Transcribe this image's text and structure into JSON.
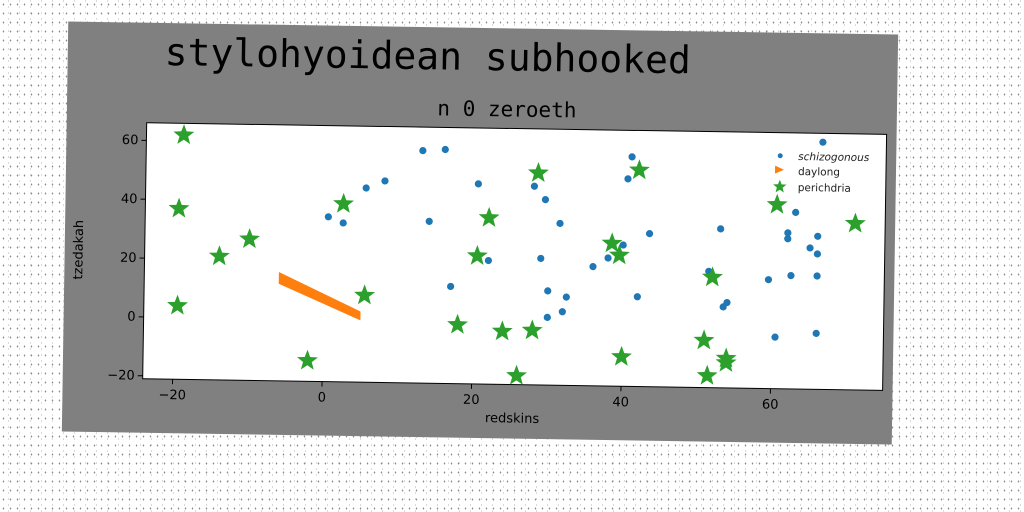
{
  "chart_data": {
    "type": "scatter",
    "title": "stylohyoidean subhooked",
    "subtitle": "n 0 zeroeth",
    "xlabel": "redskins",
    "ylabel": "tzedakah",
    "xlim": [
      -24,
      75
    ],
    "ylim": [
      -21,
      66
    ],
    "xticks": [
      -20,
      0,
      20,
      40,
      60
    ],
    "yticks": [
      -20,
      0,
      20,
      40,
      60
    ],
    "grid": false,
    "legend_position": "top-right",
    "series": [
      {
        "name": "schizogonous",
        "type": "scatter",
        "marker": "circle",
        "color": "#1f77b4",
        "points": [
          [
            0.5,
            35
          ],
          [
            2.5,
            33
          ],
          [
            5.5,
            45
          ],
          [
            8,
            47.5
          ],
          [
            13,
            58
          ],
          [
            16,
            58.5
          ],
          [
            14,
            34
          ],
          [
            17,
            12
          ],
          [
            20.5,
            47
          ],
          [
            22,
            21
          ],
          [
            28,
            46.5
          ],
          [
            29,
            22
          ],
          [
            29.5,
            42
          ],
          [
            30,
            11
          ],
          [
            30,
            2
          ],
          [
            32,
            4
          ],
          [
            32.5,
            9
          ],
          [
            31.5,
            34
          ],
          [
            36,
            19.5
          ],
          [
            38,
            22.5
          ],
          [
            40,
            27
          ],
          [
            40.5,
            49.5
          ],
          [
            41,
            57
          ],
          [
            42,
            9.5
          ],
          [
            43.5,
            31
          ],
          [
            51.5,
            18.5
          ],
          [
            53,
            33
          ],
          [
            53.5,
            6.5
          ],
          [
            54,
            8
          ],
          [
            59.5,
            16
          ],
          [
            60.5,
            -3.5
          ],
          [
            62,
            32
          ],
          [
            62,
            30
          ],
          [
            62.5,
            17.5
          ],
          [
            63,
            39
          ],
          [
            65,
            27
          ],
          [
            66,
            31
          ],
          [
            66,
            25
          ],
          [
            66,
            17.5
          ],
          [
            66,
            -2
          ],
          [
            66.5,
            63
          ]
        ]
      },
      {
        "name": "daylong",
        "type": "area",
        "marker": "triangle",
        "color": "#ff7f0e",
        "x": [
          -6,
          5
        ],
        "y_upper": [
          16,
          3
        ],
        "y_lower": [
          12,
          0
        ]
      },
      {
        "name": "perichdria",
        "type": "scatter",
        "marker": "star",
        "color": "#2ca02c",
        "points": [
          [
            -19,
            62
          ],
          [
            -19.5,
            37
          ],
          [
            -19.5,
            4
          ],
          [
            -14,
            21
          ],
          [
            -10,
            27
          ],
          [
            -2,
            -14
          ],
          [
            2.5,
            39.5
          ],
          [
            5.5,
            8.5
          ],
          [
            18,
            -1
          ],
          [
            20.5,
            22.5
          ],
          [
            22,
            35.5
          ],
          [
            24,
            -3
          ],
          [
            26,
            -18
          ],
          [
            28,
            -2.5
          ],
          [
            28.5,
            51
          ],
          [
            38.5,
            27.5
          ],
          [
            39.5,
            23.5
          ],
          [
            40,
            -11
          ],
          [
            42,
            52.5
          ],
          [
            51,
            -5
          ],
          [
            51.5,
            -17
          ],
          [
            52,
            16.5
          ],
          [
            54,
            -11
          ],
          [
            54,
            -12.5
          ],
          [
            60.5,
            41.5
          ],
          [
            71,
            35.5
          ]
        ]
      }
    ]
  }
}
